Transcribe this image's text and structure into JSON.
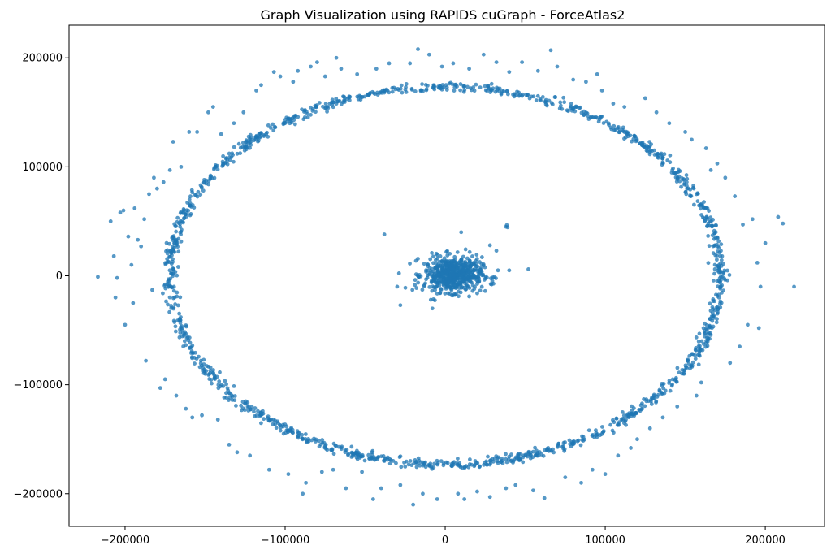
{
  "chart_data": {
    "type": "scatter",
    "title": "Graph Visualization using RAPIDS cuGraph - ForceAtlas2",
    "xlabel": "",
    "ylabel": "",
    "xlim": [
      -235000,
      237000
    ],
    "ylim": [
      -230000,
      230000
    ],
    "x_ticks": [
      -200000,
      -100000,
      0,
      100000,
      200000
    ],
    "y_ticks": [
      -200000,
      -100000,
      0,
      100000,
      200000
    ],
    "x_tick_labels": [
      "−200000",
      "−100000",
      "0",
      "100000",
      "200000"
    ],
    "y_tick_labels": [
      "−200000",
      "−100000",
      "0",
      "100000",
      "200000"
    ],
    "grid": false,
    "legend": "none",
    "point_color": "#1f77b4",
    "point_alpha": 0.75,
    "ring": {
      "center": [
        0,
        0
      ],
      "radius_x": 172000,
      "radius_y": 173000,
      "approx_points": 1400
    },
    "central_cluster": {
      "center": [
        5000,
        1000
      ],
      "spread_x": 9000,
      "spread_y": 8000,
      "approx_points": 600
    },
    "outliers": [
      [
        -217000,
        -1000
      ],
      [
        -209000,
        50000
      ],
      [
        -207000,
        18000
      ],
      [
        -206000,
        -20000
      ],
      [
        -205000,
        -2000
      ],
      [
        -203000,
        58000
      ],
      [
        -201000,
        60000
      ],
      [
        -200000,
        -45000
      ],
      [
        -198000,
        36000
      ],
      [
        -196000,
        10000
      ],
      [
        -195000,
        -25000
      ],
      [
        -194000,
        62000
      ],
      [
        -192000,
        33000
      ],
      [
        -190000,
        27000
      ],
      [
        -188000,
        52000
      ],
      [
        -187000,
        -78000
      ],
      [
        -185000,
        75000
      ],
      [
        -183000,
        -13000
      ],
      [
        -182000,
        90000
      ],
      [
        -180000,
        80000
      ],
      [
        -178000,
        -103000
      ],
      [
        -176000,
        86000
      ],
      [
        -175000,
        -95000
      ],
      [
        -172000,
        97000
      ],
      [
        -170000,
        123000
      ],
      [
        -168000,
        -110000
      ],
      [
        -165000,
        100000
      ],
      [
        -162000,
        -122000
      ],
      [
        -160000,
        132000
      ],
      [
        -158000,
        -130000
      ],
      [
        -155000,
        132000
      ],
      [
        -152000,
        -128000
      ],
      [
        -148000,
        150000
      ],
      [
        -145000,
        155000
      ],
      [
        -142000,
        -132000
      ],
      [
        -140000,
        130000
      ],
      [
        -135000,
        -155000
      ],
      [
        -132000,
        140000
      ],
      [
        -130000,
        -162000
      ],
      [
        -126000,
        150000
      ],
      [
        -122000,
        -165000
      ],
      [
        -118000,
        170000
      ],
      [
        -115000,
        175000
      ],
      [
        -110000,
        -178000
      ],
      [
        -107000,
        187000
      ],
      [
        -103000,
        183000
      ],
      [
        -98000,
        -182000
      ],
      [
        -95000,
        178000
      ],
      [
        -92000,
        188000
      ],
      [
        -89000,
        -200000
      ],
      [
        -87000,
        -190000
      ],
      [
        -84000,
        192000
      ],
      [
        -80000,
        196000
      ],
      [
        -77000,
        -180000
      ],
      [
        -75000,
        183000
      ],
      [
        -70000,
        -178000
      ],
      [
        -68000,
        200000
      ],
      [
        -65000,
        190000
      ],
      [
        -62000,
        -195000
      ],
      [
        -55000,
        185000
      ],
      [
        -52000,
        -180000
      ],
      [
        -45000,
        -205000
      ],
      [
        -43000,
        190000
      ],
      [
        -40000,
        -195000
      ],
      [
        -35000,
        195000
      ],
      [
        -28000,
        -192000
      ],
      [
        -22000,
        195000
      ],
      [
        -20000,
        -210000
      ],
      [
        -17000,
        208000
      ],
      [
        -14000,
        -200000
      ],
      [
        -10000,
        203000
      ],
      [
        -5000,
        -205000
      ],
      [
        -2000,
        192000
      ],
      [
        5000,
        195000
      ],
      [
        8000,
        -200000
      ],
      [
        12000,
        -205000
      ],
      [
        15000,
        190000
      ],
      [
        20000,
        -198000
      ],
      [
        24000,
        203000
      ],
      [
        28000,
        -203000
      ],
      [
        32000,
        196000
      ],
      [
        38000,
        -195000
      ],
      [
        40000,
        187000
      ],
      [
        44000,
        -192000
      ],
      [
        48000,
        196000
      ],
      [
        55000,
        -197000
      ],
      [
        58000,
        188000
      ],
      [
        62000,
        -204000
      ],
      [
        66000,
        207000
      ],
      [
        70000,
        192000
      ],
      [
        75000,
        -185000
      ],
      [
        80000,
        180000
      ],
      [
        85000,
        -190000
      ],
      [
        88000,
        178000
      ],
      [
        92000,
        -178000
      ],
      [
        95000,
        185000
      ],
      [
        98000,
        170000
      ],
      [
        100000,
        -182000
      ],
      [
        105000,
        158000
      ],
      [
        108000,
        -165000
      ],
      [
        112000,
        155000
      ],
      [
        116000,
        -158000
      ],
      [
        120000,
        -150000
      ],
      [
        125000,
        163000
      ],
      [
        128000,
        -140000
      ],
      [
        132000,
        150000
      ],
      [
        136000,
        -130000
      ],
      [
        140000,
        140000
      ],
      [
        145000,
        -120000
      ],
      [
        150000,
        132000
      ],
      [
        154000,
        125000
      ],
      [
        157000,
        -110000
      ],
      [
        160000,
        -98000
      ],
      [
        163000,
        117000
      ],
      [
        166000,
        97000
      ],
      [
        170000,
        103000
      ],
      [
        175000,
        90000
      ],
      [
        178000,
        -80000
      ],
      [
        181000,
        73000
      ],
      [
        184000,
        -65000
      ],
      [
        186000,
        47000
      ],
      [
        189000,
        -45000
      ],
      [
        192000,
        52000
      ],
      [
        195000,
        12000
      ],
      [
        196000,
        -48000
      ],
      [
        197000,
        -10000
      ],
      [
        200000,
        30000
      ],
      [
        208000,
        54000
      ],
      [
        211000,
        48000
      ],
      [
        218000,
        -10000
      ],
      [
        38000,
        45000
      ],
      [
        38500,
        46500
      ],
      [
        39000,
        44500
      ],
      [
        -38000,
        38000
      ],
      [
        10000,
        40000
      ],
      [
        28000,
        28000
      ],
      [
        32000,
        23000
      ],
      [
        -30000,
        -10000
      ],
      [
        -28000,
        -27000
      ],
      [
        -8000,
        -30000
      ],
      [
        -9000,
        -22000
      ],
      [
        25000,
        -14000
      ],
      [
        29000,
        -8000
      ],
      [
        33000,
        5000
      ],
      [
        40000,
        5000
      ],
      [
        52000,
        6000
      ]
    ]
  }
}
